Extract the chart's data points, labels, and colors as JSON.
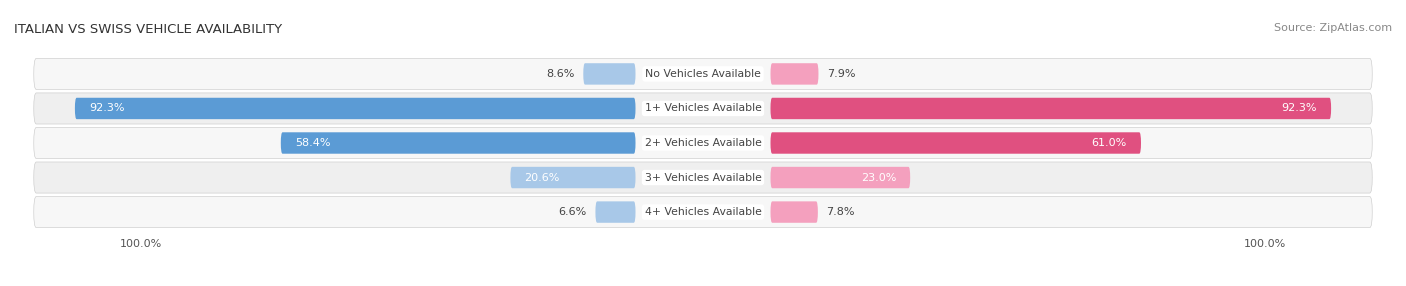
{
  "title": "ITALIAN VS SWISS VEHICLE AVAILABILITY",
  "source": "Source: ZipAtlas.com",
  "categories": [
    "No Vehicles Available",
    "1+ Vehicles Available",
    "2+ Vehicles Available",
    "3+ Vehicles Available",
    "4+ Vehicles Available"
  ],
  "italian_values": [
    8.6,
    92.3,
    58.4,
    20.6,
    6.6
  ],
  "swiss_values": [
    7.9,
    92.3,
    61.0,
    23.0,
    7.8
  ],
  "italian_color_light": "#a8c8e8",
  "italian_color_dark": "#5b9bd5",
  "swiss_color_light": "#f4a0be",
  "swiss_color_dark": "#e05080",
  "figsize": [
    14.06,
    2.86
  ],
  "dpi": 100,
  "bg_color": "#ffffff",
  "row_bg_color": "#f0f0f0",
  "row_alt_color": "#e8e8e8",
  "label_outside_color": "#444444",
  "label_inside_color": "#ffffff",
  "center_label_color": "#444444",
  "inside_threshold": 15
}
